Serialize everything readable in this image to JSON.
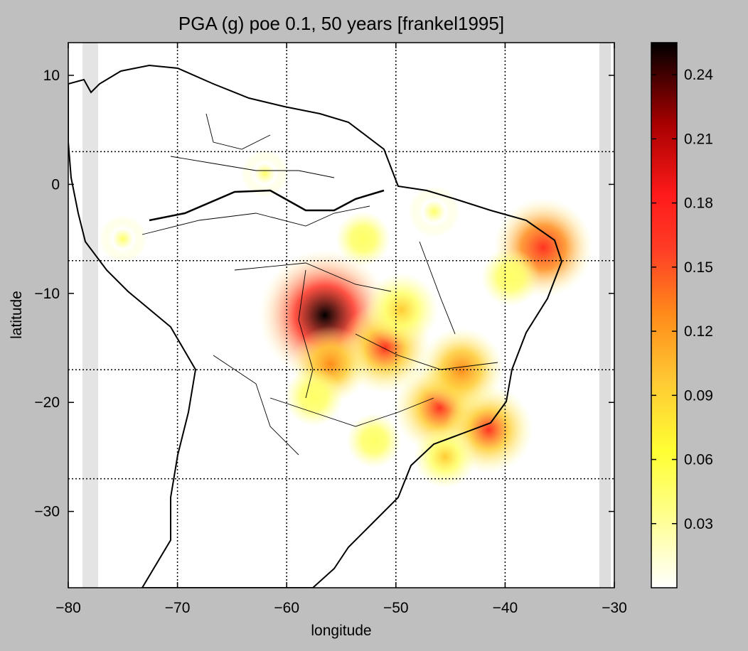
{
  "title": "PGA (g) poe 0.1, 50 years [frankel1995]",
  "xaxis": {
    "label": "longitude",
    "range": [
      -80,
      -30
    ],
    "ticks": [
      -80,
      -70,
      -60,
      -50,
      -40,
      -30
    ],
    "tick_labels": [
      "−80",
      "−70",
      "−60",
      "−50",
      "−40",
      "−30"
    ]
  },
  "yaxis": {
    "label": "latitude",
    "range": [
      -37,
      13
    ],
    "ticks": [
      10,
      0,
      -10,
      -20,
      -30
    ],
    "tick_labels": [
      "10",
      "0",
      "−10",
      "−20",
      "−30"
    ]
  },
  "gridlines": {
    "meridians": [
      -70,
      -60,
      -50,
      -40
    ],
    "parallels": [
      3,
      -7,
      -17,
      -27
    ]
  },
  "colorbar": {
    "range": [
      0.0,
      0.255
    ],
    "ticks": [
      0.03,
      0.06,
      0.09,
      0.12,
      0.15,
      0.18,
      0.21,
      0.24
    ],
    "tick_labels": [
      "0.03",
      "0.06",
      "0.09",
      "0.12",
      "0.15",
      "0.18",
      "0.21",
      "0.24"
    ],
    "colors": [
      "#ffffff",
      "#ffff66",
      "#ffcc33",
      "#ff8c1a",
      "#ff3322",
      "#cc0000",
      "#550000",
      "#000000"
    ]
  },
  "hazard_spots": [
    {
      "lon": -56.5,
      "lat": -12.0,
      "value": 0.25
    },
    {
      "lon": -51.0,
      "lat": -15.0,
      "value": 0.14
    },
    {
      "lon": -46.0,
      "lat": -20.5,
      "value": 0.14
    },
    {
      "lon": -36.5,
      "lat": -5.8,
      "value": 0.16
    },
    {
      "lon": -41.5,
      "lat": -22.5,
      "value": 0.13
    },
    {
      "lon": -44.0,
      "lat": -17.0,
      "value": 0.12
    },
    {
      "lon": -56.0,
      "lat": -16.5,
      "value": 0.1
    },
    {
      "lon": -49.5,
      "lat": -11.5,
      "value": 0.09
    },
    {
      "lon": -39.5,
      "lat": -8.5,
      "value": 0.05
    },
    {
      "lon": -45.5,
      "lat": -25.0,
      "value": 0.06
    },
    {
      "lon": -52.0,
      "lat": -23.5,
      "value": 0.04
    },
    {
      "lon": -57.5,
      "lat": -19.5,
      "value": 0.05
    },
    {
      "lon": -46.5,
      "lat": -2.5,
      "value": 0.03
    },
    {
      "lon": -53.0,
      "lat": -5.0,
      "value": 0.04
    },
    {
      "lon": -62.0,
      "lat": 1.0,
      "value": 0.02
    },
    {
      "lon": -75.0,
      "lat": -5.0,
      "value": 0.02
    }
  ]
}
